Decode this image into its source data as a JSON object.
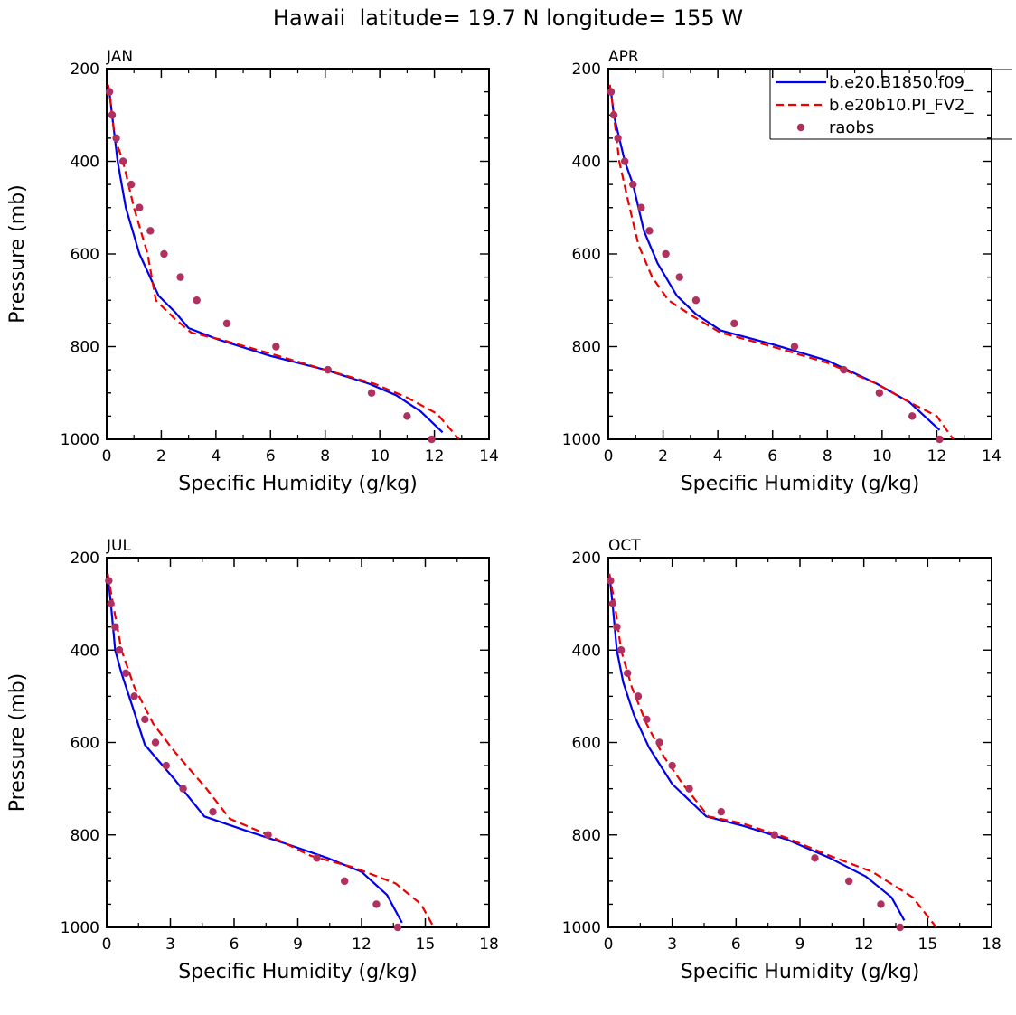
{
  "title": "Hawaii  latitude= 19.7 N longitude= 155 W",
  "colors": {
    "model1": "#0000ee",
    "model2": "#ee0000",
    "obs": "#b03060"
  },
  "legend": [
    {
      "label": "b.e20.B1850.f09_",
      "style": "solid"
    },
    {
      "label": "b.e20b10.PI_FV2_",
      "style": "dashed"
    },
    {
      "label": "raobs",
      "style": "marker"
    }
  ],
  "chart_data": [
    {
      "type": "line",
      "panel": "JAN",
      "xlabel": "Specific Humidity (g/kg)",
      "ylabel": "Pressure (mb)",
      "xlim": [
        0,
        14
      ],
      "ylim": [
        200,
        1000
      ],
      "y_inverted": true,
      "xticks": [
        0,
        2,
        4,
        6,
        8,
        10,
        12,
        14
      ],
      "yticks": [
        200,
        400,
        600,
        800,
        1000
      ],
      "series": [
        {
          "name": "b.e20.B1850.f09_",
          "x": [
            0.05,
            0.1,
            0.2,
            0.4,
            0.7,
            1.2,
            1.9,
            2.5,
            3.0,
            4.1,
            6.0,
            8.0,
            9.6,
            10.6,
            11.5,
            12.3
          ],
          "y": [
            235,
            250,
            300,
            400,
            500,
            600,
            690,
            725,
            760,
            785,
            820,
            850,
            880,
            905,
            940,
            985
          ]
        },
        {
          "name": "b.e20b10.PI_FV2_",
          "x": [
            0.05,
            0.1,
            0.2,
            0.3,
            0.6,
            1.0,
            1.5,
            1.8,
            2.5,
            3.1,
            4.2,
            6.0,
            8.0,
            9.8,
            11.0,
            12.1,
            12.9
          ],
          "y": [
            235,
            250,
            300,
            350,
            400,
            500,
            600,
            700,
            740,
            770,
            785,
            815,
            850,
            880,
            910,
            945,
            1000
          ]
        },
        {
          "name": "raobs",
          "x": [
            0.1,
            0.2,
            0.35,
            0.6,
            0.9,
            1.2,
            1.6,
            2.1,
            2.7,
            3.3,
            4.4,
            6.2,
            8.1,
            9.7,
            11.0,
            11.9
          ],
          "y": [
            250,
            300,
            350,
            400,
            450,
            500,
            550,
            600,
            650,
            700,
            750,
            800,
            850,
            900,
            950,
            1000
          ]
        }
      ]
    },
    {
      "type": "line",
      "panel": "APR",
      "xlabel": "Specific Humidity (g/kg)",
      "ylabel": "",
      "xlim": [
        0,
        14
      ],
      "ylim": [
        200,
        1000
      ],
      "y_inverted": true,
      "xticks": [
        0,
        2,
        4,
        6,
        8,
        10,
        12,
        14
      ],
      "yticks": [
        200,
        400,
        600,
        800,
        1000
      ],
      "series": [
        {
          "name": "b.e20.B1850.f09_",
          "x": [
            0.05,
            0.1,
            0.2,
            0.4,
            0.6,
            0.9,
            1.3,
            1.8,
            2.5,
            3.2,
            4.1,
            6.0,
            8.0,
            9.8,
            11.0,
            12.1
          ],
          "y": [
            235,
            250,
            300,
            350,
            400,
            450,
            550,
            620,
            690,
            730,
            765,
            795,
            830,
            880,
            920,
            980
          ]
        },
        {
          "name": "b.e20b10.PI_FV2_",
          "x": [
            0.05,
            0.1,
            0.2,
            0.4,
            0.7,
            1.1,
            1.6,
            2.2,
            3.1,
            4.1,
            6.0,
            8.0,
            9.8,
            11.0,
            12.0,
            12.6
          ],
          "y": [
            235,
            250,
            300,
            400,
            480,
            580,
            650,
            700,
            735,
            770,
            800,
            835,
            880,
            920,
            950,
            1000
          ]
        },
        {
          "name": "raobs",
          "x": [
            0.1,
            0.2,
            0.35,
            0.6,
            0.9,
            1.2,
            1.5,
            2.1,
            2.6,
            3.2,
            4.6,
            6.8,
            8.6,
            9.9,
            11.1,
            12.1
          ],
          "y": [
            250,
            300,
            350,
            400,
            450,
            500,
            550,
            600,
            650,
            700,
            750,
            800,
            850,
            900,
            950,
            1000
          ]
        }
      ]
    },
    {
      "type": "line",
      "panel": "JUL",
      "xlabel": "Specific Humidity (g/kg)",
      "ylabel": "Pressure (mb)",
      "xlim": [
        0,
        18
      ],
      "ylim": [
        200,
        1000
      ],
      "y_inverted": true,
      "xticks": [
        0,
        3,
        6,
        9,
        12,
        15,
        18
      ],
      "yticks": [
        200,
        400,
        600,
        800,
        1000
      ],
      "series": [
        {
          "name": "b.e20.B1850.f09_",
          "x": [
            0.05,
            0.2,
            0.4,
            0.7,
            1.2,
            1.8,
            3.2,
            4.6,
            6.5,
            8.5,
            10.4,
            12.0,
            13.2,
            13.9
          ],
          "y": [
            235,
            300,
            400,
            450,
            520,
            605,
            680,
            760,
            790,
            820,
            850,
            880,
            930,
            990
          ]
        },
        {
          "name": "b.e20b10.PI_FV2_",
          "x": [
            0.05,
            0.3,
            0.7,
            1.3,
            2.2,
            3.2,
            4.7,
            5.8,
            7.6,
            9.6,
            11.6,
            13.6,
            14.8,
            15.4
          ],
          "y": [
            235,
            300,
            400,
            480,
            560,
            620,
            700,
            765,
            800,
            845,
            870,
            905,
            950,
            1000
          ]
        },
        {
          "name": "raobs",
          "x": [
            0.1,
            0.2,
            0.4,
            0.6,
            0.9,
            1.3,
            1.8,
            2.3,
            2.8,
            3.6,
            5.0,
            7.6,
            9.9,
            11.2,
            12.7,
            13.7
          ],
          "y": [
            250,
            300,
            350,
            400,
            450,
            500,
            550,
            600,
            650,
            700,
            750,
            800,
            850,
            900,
            950,
            1000
          ]
        }
      ]
    },
    {
      "type": "line",
      "panel": "OCT",
      "xlabel": "Specific Humidity (g/kg)",
      "ylabel": "",
      "xlim": [
        0,
        18
      ],
      "ylim": [
        200,
        1000
      ],
      "y_inverted": true,
      "xticks": [
        0,
        3,
        6,
        9,
        12,
        15,
        18
      ],
      "yticks": [
        200,
        400,
        600,
        800,
        1000
      ],
      "series": [
        {
          "name": "b.e20.B1850.f09_",
          "x": [
            0.05,
            0.2,
            0.4,
            0.7,
            1.2,
            1.9,
            3.0,
            4.6,
            6.3,
            8.4,
            10.4,
            12.1,
            13.3,
            13.9
          ],
          "y": [
            235,
            300,
            400,
            470,
            540,
            610,
            690,
            760,
            780,
            810,
            850,
            890,
            935,
            985
          ]
        },
        {
          "name": "b.e20b10.PI_FV2_",
          "x": [
            0.05,
            0.3,
            0.6,
            1.1,
            1.8,
            2.6,
            3.5,
            4.7,
            6.3,
            8.3,
            10.4,
            12.4,
            14.3,
            15.4
          ],
          "y": [
            235,
            300,
            400,
            480,
            560,
            630,
            690,
            760,
            775,
            805,
            845,
            880,
            935,
            1000
          ]
        },
        {
          "name": "raobs",
          "x": [
            0.1,
            0.2,
            0.4,
            0.6,
            0.9,
            1.4,
            1.8,
            2.4,
            3.0,
            3.8,
            5.3,
            7.8,
            9.7,
            11.3,
            12.8,
            13.7
          ],
          "y": [
            250,
            300,
            350,
            400,
            450,
            500,
            550,
            600,
            650,
            700,
            750,
            800,
            850,
            900,
            950,
            1000
          ]
        }
      ]
    }
  ]
}
